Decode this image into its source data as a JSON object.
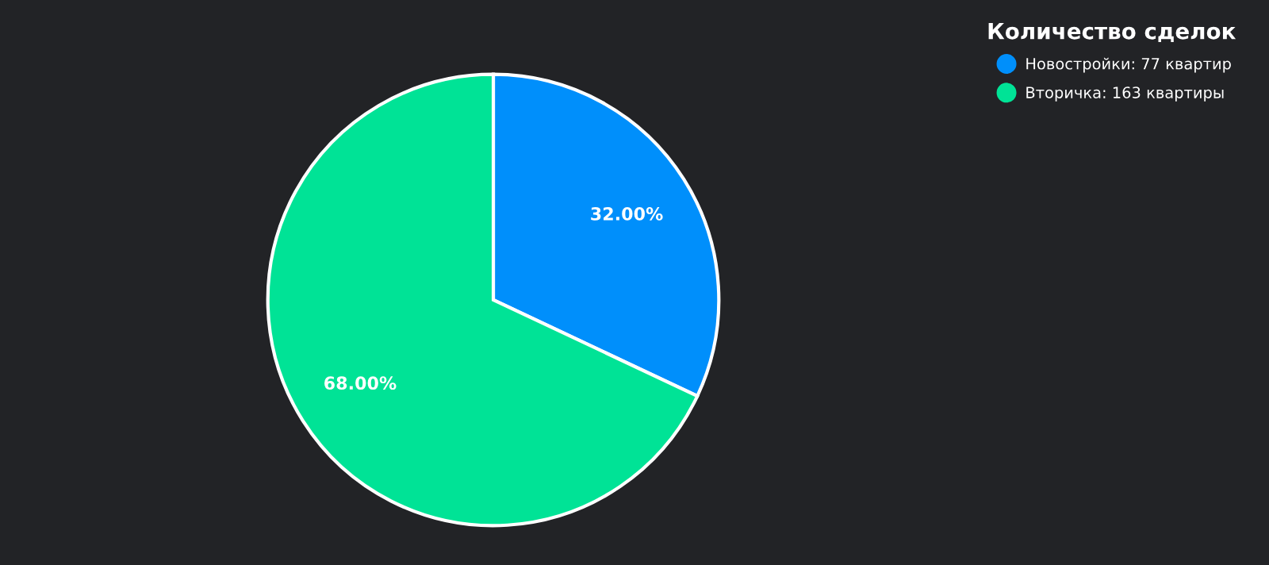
{
  "chart_data": {
    "type": "pie",
    "categories": [
      "Новостройки: 77 квартир",
      "Вторичка: 163 квартиры"
    ],
    "values": [
      32,
      68
    ],
    "value_labels": [
      "32.00%",
      "68.00%"
    ],
    "colors": [
      "#008ffb",
      "#00e396"
    ],
    "legend_title": "Количество сделок",
    "legend": "top right"
  }
}
